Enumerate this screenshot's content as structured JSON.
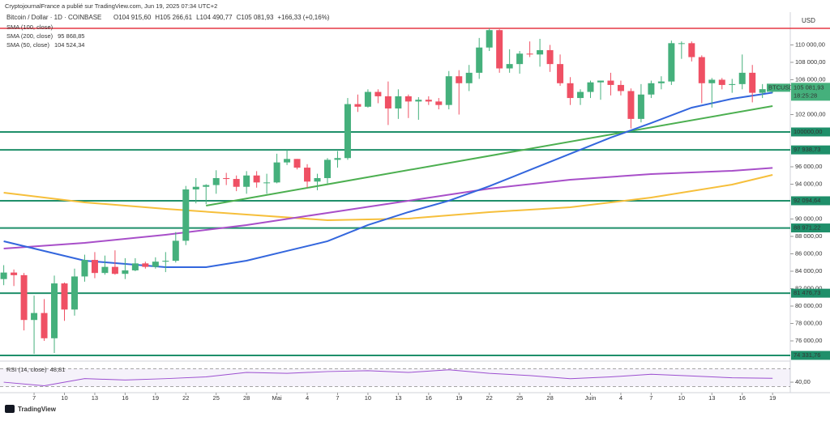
{
  "chart_data": {
    "type": "candlestick",
    "title": "CryptojournalFrance a publié sur TradingView.com, Jun 19, 2025 07:34 UTC+2",
    "symbol": "Bitcoin / Dollar · 1D · COINBASE",
    "ohlc_header": [
      "O104 915,60",
      "H105 266,61",
      "L104 490,77",
      "C105 081,93",
      "+166,33 (+0,16%)"
    ],
    "currency": "USD",
    "brand": "TradingView",
    "up_color": "#45b07c",
    "down_color": "#ef5064",
    "xlim": [
      -0.37,
      77.75
    ],
    "ylim": [
      73770,
      113300
    ],
    "xticks": [
      {
        "value": 3,
        "label": "7"
      },
      {
        "value": 6,
        "label": "10"
      },
      {
        "value": 9,
        "label": "13"
      },
      {
        "value": 12,
        "label": "16"
      },
      {
        "value": 15,
        "label": "19"
      },
      {
        "value": 18,
        "label": "22"
      },
      {
        "value": 21,
        "label": "25"
      },
      {
        "value": 24,
        "label": "28"
      },
      {
        "value": 27,
        "label": "Mai"
      },
      {
        "value": 30,
        "label": "4"
      },
      {
        "value": 33,
        "label": "7"
      },
      {
        "value": 36,
        "label": "10"
      },
      {
        "value": 39,
        "label": "13"
      },
      {
        "value": 42,
        "label": "16"
      },
      {
        "value": 45,
        "label": "19"
      },
      {
        "value": 48,
        "label": "22"
      },
      {
        "value": 51,
        "label": "25"
      },
      {
        "value": 54,
        "label": "28"
      },
      {
        "value": 58,
        "label": "Juin"
      },
      {
        "value": 61,
        "label": "4"
      },
      {
        "value": 64,
        "label": "7"
      },
      {
        "value": 67,
        "label": "10"
      },
      {
        "value": 70,
        "label": "13"
      },
      {
        "value": 73,
        "label": "16"
      },
      {
        "value": 76,
        "label": "19"
      }
    ],
    "yticks": [
      {
        "value": 110000,
        "label": "110 000,00"
      },
      {
        "value": 108000,
        "label": "108 000,00"
      },
      {
        "value": 106000,
        "label": "106 000,00"
      },
      {
        "value": 102000,
        "label": "102 000,00"
      },
      {
        "value": 96000,
        "label": "96 000,00"
      },
      {
        "value": 94000,
        "label": "94 000,00"
      },
      {
        "value": 90000,
        "label": "90 000,00"
      },
      {
        "value": 88000,
        "label": "88 000,00"
      },
      {
        "value": 86000,
        "label": "86 000,00"
      },
      {
        "value": 84000,
        "label": "84 000,00"
      },
      {
        "value": 82000,
        "label": "82 000,00"
      },
      {
        "value": 80000,
        "label": "80 000,00"
      },
      {
        "value": 78000,
        "label": "78 000,00"
      },
      {
        "value": 76000,
        "label": "76 000,00"
      }
    ],
    "open": [
      83100,
      83850,
      83550,
      78400,
      79200,
      76300,
      82600,
      79600,
      83400,
      85300,
      83800,
      84500,
      83700,
      84100,
      84900,
      84500,
      85100,
      85200,
      87500,
      93400,
      93700,
      93900,
      94700,
      94600,
      93700,
      95000,
      94200,
      94200,
      96500,
      96900,
      95900,
      94300,
      94700,
      96800,
      97000,
      103200,
      102900,
      104600,
      104100,
      102700,
      104100,
      103500,
      103700,
      103500,
      103100,
      106400,
      105600,
      106800,
      109700,
      111700,
      107300,
      107800,
      109000,
      108900,
      109400,
      107800,
      105600,
      103900,
      104600,
      105700,
      105900,
      105400,
      104700,
      101500,
      104300,
      105600,
      105800,
      110200,
      110200,
      108600,
      105600,
      106000,
      105400,
      105500,
      106800,
      104500,
      104915.6
    ],
    "high": [
      84700,
      84200,
      83800,
      81200,
      80800,
      83500,
      82700,
      84300,
      85900,
      86200,
      85800,
      86400,
      85500,
      85500,
      85100,
      85600,
      86200,
      88500,
      93800,
      94700,
      94000,
      95600,
      95300,
      95000,
      95500,
      95500,
      95200,
      97500,
      97900,
      96900,
      96300,
      95200,
      97000,
      97800,
      103900,
      104300,
      104900,
      104900,
      105800,
      104900,
      104300,
      104000,
      104100,
      103900,
      107000,
      107100,
      107700,
      110800,
      111900,
      111800,
      109500,
      109300,
      110400,
      110700,
      110000,
      108900,
      106300,
      104900,
      105900,
      105900,
      106800,
      105900,
      105000,
      105500,
      105900,
      106400,
      110500,
      110400,
      110400,
      108800,
      106200,
      106200,
      106100,
      108900,
      107700,
      105500,
      105266.61
    ],
    "low": [
      82400,
      82300,
      77200,
      74500,
      76000,
      74600,
      78300,
      78900,
      82800,
      83200,
      83600,
      83600,
      83100,
      84000,
      84300,
      84300,
      83900,
      85000,
      87000,
      91800,
      91700,
      92900,
      93900,
      93200,
      92900,
      93600,
      92900,
      94100,
      96200,
      95700,
      93600,
      93300,
      94100,
      95900,
      96800,
      102300,
      102800,
      103300,
      100800,
      101500,
      101600,
      101400,
      103100,
      102600,
      102600,
      102000,
      104700,
      106100,
      109300,
      106800,
      106800,
      106700,
      108600,
      107500,
      106900,
      105300,
      103100,
      103100,
      103900,
      103700,
      104200,
      104200,
      100400,
      101100,
      103900,
      104900,
      105400,
      108400,
      108100,
      103300,
      102800,
      104900,
      104500,
      104900,
      103400,
      103900,
      104490.77
    ],
    "close": [
      83850,
      83550,
      78400,
      79200,
      76300,
      82600,
      79600,
      83400,
      85300,
      83800,
      84500,
      83700,
      84100,
      84900,
      84500,
      85100,
      85200,
      87500,
      93400,
      93700,
      93900,
      94700,
      94600,
      93700,
      95000,
      94200,
      94200,
      96500,
      96900,
      95900,
      94300,
      94700,
      96800,
      97000,
      103200,
      102900,
      104600,
      104100,
      102700,
      104100,
      103500,
      103700,
      103500,
      103100,
      106400,
      105600,
      106800,
      109700,
      111700,
      107300,
      107800,
      109000,
      108900,
      109400,
      107800,
      105600,
      103900,
      104600,
      105700,
      105900,
      105400,
      104700,
      101500,
      104300,
      105600,
      105800,
      110200,
      110200,
      108600,
      105600,
      106000,
      105400,
      105500,
      106800,
      104500,
      104915.6,
      105081.93
    ],
    "series": [
      {
        "name": "SMA (100, close)",
        "color": "#f6bf3b",
        "x": [
          0,
          8,
          16,
          24,
          32,
          40,
          48,
          56,
          64,
          72,
          76
        ],
        "values": [
          93025,
          91909,
          91165,
          90514,
          89863,
          90049,
          90793,
          91351,
          92467,
          93955,
          95071
        ]
      },
      {
        "name": "SMA (200, close)",
        "color": "#a84fc9",
        "value_label": "95 868,85",
        "x": [
          0,
          8,
          16,
          24,
          32,
          40,
          48,
          56,
          64,
          72,
          76
        ],
        "values": [
          86608,
          87259,
          88189,
          89305,
          90700,
          92095,
          93490,
          94513,
          95164,
          95536,
          95868.85
        ]
      },
      {
        "name": "SMA (50, close)",
        "color": "#3366dd",
        "value_label": "104 524,34",
        "x": [
          0,
          8,
          16,
          20,
          24,
          28,
          32,
          36,
          40,
          44,
          48,
          52,
          56,
          60,
          64,
          68,
          72,
          76
        ],
        "values": [
          87445,
          85213,
          84469,
          84469,
          85213,
          86330,
          87445,
          89305,
          90793,
          92095,
          93769,
          95629,
          97490,
          99350,
          101023,
          102790,
          103813,
          104524.34
        ]
      }
    ],
    "trendline": {
      "color": "#4caf50",
      "x": [
        20,
        76
      ],
      "values": [
        91537,
        102976
      ]
    },
    "resistance": {
      "color": "#e53945",
      "value": 111900
    },
    "levels": {
      "color": "#1f8f6a",
      "values": [
        100000,
        97938.73,
        92094.64,
        88971.22,
        81476.73,
        74331.76
      ],
      "value_labels": [
        "100000,00",
        "97 938,73",
        "92 094,64",
        "88 971,22",
        "81 476,73",
        "74 331,76"
      ]
    },
    "price_label": {
      "symbol": "BTCUSD",
      "price": "105 081,93",
      "countdown": "18:25:28",
      "value": 105081.93
    },
    "rsi": {
      "name": "RSI (14, close)",
      "value_label": "48,81",
      "color": "#9c4fd0",
      "ylim": [
        20,
        84
      ],
      "yticks": [
        {
          "value": 40,
          "label": "40,00"
        }
      ],
      "band": [
        30,
        70
      ],
      "x": [
        0,
        4,
        8,
        12,
        16,
        20,
        24,
        28,
        32,
        36,
        40,
        44,
        48,
        52,
        56,
        60,
        64,
        68,
        72,
        76
      ],
      "values": [
        40,
        32,
        48,
        45,
        48,
        52,
        62,
        60,
        64,
        66,
        62,
        68,
        60,
        55,
        48,
        52,
        58,
        54,
        50,
        48.81
      ]
    }
  }
}
